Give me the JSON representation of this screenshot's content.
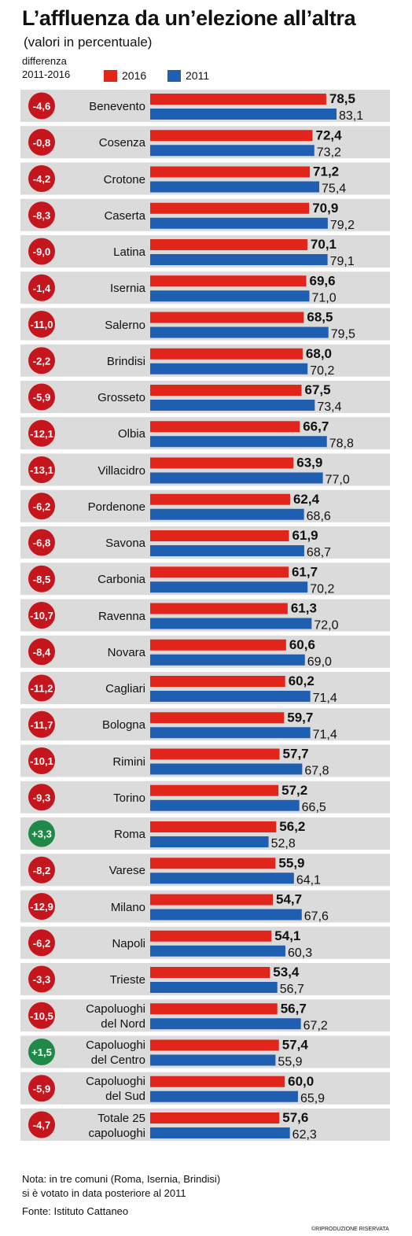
{
  "title": "L’affluenza da un’elezione all’altra",
  "subtitle": "(valori in percentuale)",
  "diff_label_line1": "differenza",
  "diff_label_line2": "2011-2016",
  "colors": {
    "s2016": "#e1251b",
    "s2011": "#1f5fb2",
    "neg_circle": "#c4161c",
    "pos_circle": "#1f8a48",
    "row_band": "#dcdbdc"
  },
  "chart_data": {
    "type": "bar",
    "orientation": "horizontal",
    "series": [
      {
        "name": "2016",
        "values": [
          78.5,
          72.4,
          71.2,
          70.9,
          70.1,
          69.6,
          68.5,
          68.0,
          67.5,
          66.7,
          63.9,
          62.4,
          61.9,
          61.7,
          61.3,
          60.6,
          60.2,
          59.7,
          57.7,
          57.2,
          56.2,
          55.9,
          54.7,
          54.1,
          53.4,
          56.7,
          57.4,
          60.0,
          57.6
        ]
      },
      {
        "name": "2011",
        "values": [
          83.1,
          73.2,
          75.4,
          79.2,
          79.1,
          71.0,
          79.5,
          70.2,
          73.4,
          78.8,
          77.0,
          68.6,
          68.7,
          70.2,
          72.0,
          69.0,
          71.4,
          71.4,
          67.8,
          66.5,
          52.8,
          64.1,
          67.6,
          60.3,
          56.7,
          67.2,
          55.9,
          65.9,
          62.3
        ]
      }
    ],
    "categories": [
      [
        "Benevento"
      ],
      [
        "Cosenza"
      ],
      [
        "Crotone"
      ],
      [
        "Caserta"
      ],
      [
        "Latina"
      ],
      [
        "Isernia"
      ],
      [
        "Salerno"
      ],
      [
        "Brindisi"
      ],
      [
        "Grosseto"
      ],
      [
        "Olbia"
      ],
      [
        "Villacidro"
      ],
      [
        "Pordenone"
      ],
      [
        "Savona"
      ],
      [
        "Carbonia"
      ],
      [
        "Ravenna"
      ],
      [
        "Novara"
      ],
      [
        "Cagliari"
      ],
      [
        "Bologna"
      ],
      [
        "Rimini"
      ],
      [
        "Torino"
      ],
      [
        "Roma"
      ],
      [
        "Varese"
      ],
      [
        "Milano"
      ],
      [
        "Napoli"
      ],
      [
        "Trieste"
      ],
      [
        "Capoluoghi",
        "del Nord"
      ],
      [
        "Capoluoghi",
        "del Centro"
      ],
      [
        "Capoluoghi",
        "del Sud"
      ],
      [
        "Totale 25",
        "capoluoghi"
      ]
    ],
    "labels_2016": [
      "78,5",
      "72,4",
      "71,2",
      "70,9",
      "70,1",
      "69,6",
      "68,5",
      "68,0",
      "67,5",
      "66,7",
      "63,9",
      "62,4",
      "61,9",
      "61,7",
      "61,3",
      "60,6",
      "60,2",
      "59,7",
      "57,7",
      "57,2",
      "56,2",
      "55,9",
      "54,7",
      "54,1",
      "53,4",
      "56,7",
      "57,4",
      "60,0",
      "57,6"
    ],
    "labels_2011": [
      "83,1",
      "73,2",
      "75,4",
      "79,2",
      "79,1",
      "71,0",
      "79,5",
      "70,2",
      "73,4",
      "78,8",
      "77,0",
      "68,6",
      "68,7",
      "70,2",
      "72,0",
      "69,0",
      "71,4",
      "71,4",
      "67,8",
      "66,5",
      "52,8",
      "64,1",
      "67,6",
      "60,3",
      "56,7",
      "67,2",
      "55,9",
      "65,9",
      "62,3"
    ],
    "differences": [
      "-4,6",
      "-0,8",
      "-4,2",
      "-8,3",
      "-9,0",
      "-1,4",
      "-11,0",
      "-2,2",
      "-5,9",
      "-12,1",
      "-13,1",
      "-6,2",
      "-6,8",
      "-8,5",
      "-10,7",
      "-8,4",
      "-11,2",
      "-11,7",
      "-10,1",
      "-9,3",
      "+3,3",
      "-8,2",
      "-12,9",
      "-6,2",
      "-3,3",
      "-10,5",
      "+1,5",
      "-5,9",
      "-4,7"
    ],
    "legend": [
      "2016",
      "2011"
    ],
    "legend_position": "top",
    "grid": false
  },
  "notes": {
    "line1": "Nota: in tre comuni (Roma, Isernia, Brindisi)",
    "line2": "si è votato in data posteriore al 2011",
    "source": "Fonte: Istituto Cattaneo"
  },
  "copyright": "©RIPRODUZIONE RISERVATA"
}
